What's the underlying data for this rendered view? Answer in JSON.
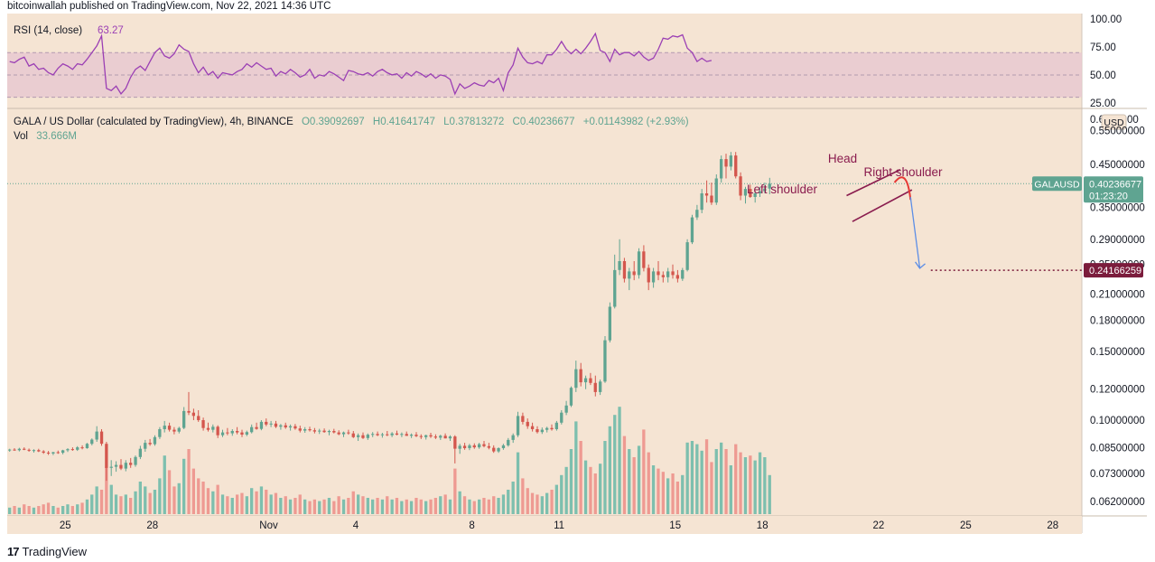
{
  "publisher": "bitcoinwallah published on TradingView.com, Nov 22, 2021 14:36 UTC",
  "footer": {
    "logo_mark": "17",
    "logo_text": "TradingView"
  },
  "colors": {
    "background": "#f5e4d3",
    "panel_bg": "#ffffff",
    "up": "#5fa491",
    "down": "#d4564d",
    "vol_up": "#7dbfae",
    "vol_down": "#ee9a92",
    "rsi_line": "#9b3fb4",
    "rsi_band": "#e6c5d0",
    "pattern": "#8a1c4e",
    "arrow_blue": "#5c8ee6",
    "target_label": "#7b1c3c",
    "price_label": "#5fa491",
    "curve_red": "#e53935"
  },
  "rsi": {
    "legend_name": "RSI (14, close)",
    "legend_value": "63.27",
    "ticks": [
      "100.00",
      "75.00",
      "50.00",
      "25.00"
    ],
    "band": [
      30,
      70
    ]
  },
  "legend": {
    "symbol": "GALA / US Dollar (calculated by TradingView), 4h, BINANCE",
    "o": "O0.39092697",
    "h": "H0.41641747",
    "l": "L0.37813272",
    "c": "C0.40236677",
    "chg": "+0.01143982 (+2.93%)",
    "vol_label": "Vol",
    "vol_value": "33.666M"
  },
  "price_axis": {
    "unit": "USD",
    "top_partial": "0.6",
    "top_partial_suffix": "00",
    "ticks": [
      "0.55000000",
      "0.45000000",
      "0.35000000",
      "0.29000000",
      "0.21000000",
      "0.18000000",
      "0.15000000",
      "0.12000000",
      "0.10000000",
      "0.08500000",
      "0.07300000",
      "0.06200000"
    ],
    "hidden_tick": "0.25000000",
    "current_symbol": "GALAUSD",
    "current_price": "0.40236677",
    "countdown": "01:23:20",
    "target_price": "0.24166259"
  },
  "time_axis": {
    "ticks": [
      "25",
      "28",
      "Nov",
      "4",
      "8",
      "11",
      "15",
      "18",
      "22",
      "25",
      "28"
    ]
  },
  "annotations": {
    "head": "Head",
    "left_shoulder": "Left shoulder",
    "right_shoulder": "Right shoulder"
  },
  "chart_data": {
    "type": "candlestick",
    "title": "GALA / US Dollar (calculated by TradingView), 4h, BINANCE",
    "x_range": [
      "2021-10-23",
      "2021-11-29"
    ],
    "y_scale": "log",
    "ylim": [
      0.056,
      0.62
    ],
    "rsi_range": [
      20,
      105
    ],
    "note": "one entry per 4h bar [open, high, low, close, volume_M]; volume axis not printed so volumes are relative",
    "start": "2021-10-23",
    "candles": [
      [
        0.0838,
        0.0845,
        0.083,
        0.0841,
        4
      ],
      [
        0.0841,
        0.0848,
        0.0835,
        0.0838,
        5
      ],
      [
        0.0838,
        0.085,
        0.0832,
        0.0845,
        4
      ],
      [
        0.0845,
        0.0852,
        0.0838,
        0.084,
        6
      ],
      [
        0.084,
        0.0846,
        0.083,
        0.0835,
        5
      ],
      [
        0.0835,
        0.0842,
        0.0826,
        0.0838,
        4
      ],
      [
        0.0838,
        0.0845,
        0.0829,
        0.0832,
        5
      ],
      [
        0.0832,
        0.0838,
        0.082,
        0.0826,
        6
      ],
      [
        0.0826,
        0.0834,
        0.0815,
        0.0822,
        7
      ],
      [
        0.0822,
        0.083,
        0.0814,
        0.0828,
        5
      ],
      [
        0.0828,
        0.0836,
        0.082,
        0.0825,
        4
      ],
      [
        0.0825,
        0.084,
        0.0818,
        0.0837,
        5
      ],
      [
        0.0837,
        0.0848,
        0.0829,
        0.0843,
        6
      ],
      [
        0.0843,
        0.0852,
        0.0835,
        0.084,
        5
      ],
      [
        0.084,
        0.0858,
        0.0834,
        0.0852,
        6
      ],
      [
        0.0852,
        0.0862,
        0.0842,
        0.0848,
        7
      ],
      [
        0.0848,
        0.0875,
        0.0845,
        0.087,
        9
      ],
      [
        0.087,
        0.0898,
        0.0862,
        0.0892,
        12
      ],
      [
        0.0892,
        0.0965,
        0.088,
        0.0935,
        17
      ],
      [
        0.0935,
        0.0948,
        0.086,
        0.087,
        15
      ],
      [
        0.087,
        0.088,
        0.07,
        0.0755,
        29
      ],
      [
        0.0755,
        0.079,
        0.072,
        0.076,
        18
      ],
      [
        0.076,
        0.0785,
        0.0738,
        0.0768,
        12
      ],
      [
        0.0768,
        0.0795,
        0.0745,
        0.0752,
        11
      ],
      [
        0.0752,
        0.079,
        0.074,
        0.0778,
        12
      ],
      [
        0.0778,
        0.08,
        0.0755,
        0.0768,
        10
      ],
      [
        0.0768,
        0.0812,
        0.076,
        0.0805,
        14
      ],
      [
        0.0805,
        0.086,
        0.0795,
        0.0845,
        20
      ],
      [
        0.0845,
        0.089,
        0.083,
        0.0875,
        17
      ],
      [
        0.0875,
        0.0895,
        0.086,
        0.0868,
        13
      ],
      [
        0.0868,
        0.0915,
        0.086,
        0.0905,
        15
      ],
      [
        0.0905,
        0.096,
        0.0895,
        0.0948,
        22
      ],
      [
        0.0948,
        0.0995,
        0.093,
        0.0968,
        36
      ],
      [
        0.0968,
        0.0985,
        0.0935,
        0.0945,
        27
      ],
      [
        0.0945,
        0.096,
        0.092,
        0.0935,
        17
      ],
      [
        0.0935,
        0.0962,
        0.0925,
        0.0955,
        19
      ],
      [
        0.0955,
        0.108,
        0.0948,
        0.1055,
        34
      ],
      [
        0.1055,
        0.118,
        0.103,
        0.1045,
        40
      ],
      [
        0.1045,
        0.107,
        0.1,
        0.1025,
        28
      ],
      [
        0.1025,
        0.106,
        0.099,
        0.1,
        22
      ],
      [
        0.1,
        0.1015,
        0.094,
        0.0955,
        20
      ],
      [
        0.0955,
        0.0985,
        0.0935,
        0.0945,
        16
      ],
      [
        0.0945,
        0.0975,
        0.093,
        0.0962,
        14
      ],
      [
        0.0962,
        0.097,
        0.09,
        0.0915,
        18
      ],
      [
        0.0915,
        0.0945,
        0.0905,
        0.093,
        12
      ],
      [
        0.093,
        0.0955,
        0.0915,
        0.0925,
        11
      ],
      [
        0.0925,
        0.0948,
        0.0912,
        0.0938,
        10
      ],
      [
        0.0938,
        0.096,
        0.092,
        0.093,
        12
      ],
      [
        0.093,
        0.0945,
        0.0905,
        0.0918,
        13
      ],
      [
        0.0918,
        0.094,
        0.091,
        0.0932,
        11
      ],
      [
        0.0932,
        0.0975,
        0.0925,
        0.096,
        16
      ],
      [
        0.096,
        0.0985,
        0.0945,
        0.095,
        14
      ],
      [
        0.095,
        0.1,
        0.0942,
        0.099,
        17
      ],
      [
        0.099,
        0.101,
        0.0965,
        0.0975,
        15
      ],
      [
        0.0975,
        0.0995,
        0.096,
        0.098,
        12
      ],
      [
        0.098,
        0.0995,
        0.0955,
        0.0962,
        13
      ],
      [
        0.0962,
        0.0978,
        0.0945,
        0.097,
        10
      ],
      [
        0.097,
        0.0985,
        0.095,
        0.0958,
        11
      ],
      [
        0.0958,
        0.0975,
        0.094,
        0.0965,
        9
      ],
      [
        0.0965,
        0.0978,
        0.0945,
        0.0952,
        10
      ],
      [
        0.0952,
        0.0968,
        0.093,
        0.094,
        12
      ],
      [
        0.094,
        0.096,
        0.0928,
        0.0948,
        9
      ],
      [
        0.0948,
        0.0962,
        0.0935,
        0.0942,
        8
      ],
      [
        0.0942,
        0.0955,
        0.0925,
        0.0935,
        9
      ],
      [
        0.0935,
        0.095,
        0.0922,
        0.094,
        8
      ],
      [
        0.094,
        0.0952,
        0.0928,
        0.0932,
        9
      ],
      [
        0.0932,
        0.0945,
        0.0915,
        0.0938,
        10
      ],
      [
        0.0938,
        0.095,
        0.0925,
        0.093,
        8
      ],
      [
        0.093,
        0.0942,
        0.0915,
        0.092,
        11
      ],
      [
        0.092,
        0.0935,
        0.0905,
        0.093,
        9
      ],
      [
        0.093,
        0.0945,
        0.0918,
        0.0925,
        10
      ],
      [
        0.0925,
        0.0938,
        0.09,
        0.0905,
        14
      ],
      [
        0.0905,
        0.0925,
        0.0885,
        0.0915,
        12
      ],
      [
        0.0915,
        0.093,
        0.0895,
        0.09,
        11
      ],
      [
        0.09,
        0.0925,
        0.089,
        0.0918,
        10
      ],
      [
        0.0918,
        0.0932,
        0.0905,
        0.0922,
        9
      ],
      [
        0.0922,
        0.0935,
        0.091,
        0.0915,
        10
      ],
      [
        0.0915,
        0.0928,
        0.0902,
        0.092,
        9
      ],
      [
        0.092,
        0.0938,
        0.091,
        0.0915,
        11
      ],
      [
        0.0915,
        0.0932,
        0.0905,
        0.0925,
        9
      ],
      [
        0.0925,
        0.094,
        0.0915,
        0.0918,
        10
      ],
      [
        0.0918,
        0.093,
        0.0905,
        0.0922,
        8
      ],
      [
        0.0922,
        0.0935,
        0.0912,
        0.0912,
        9
      ],
      [
        0.0912,
        0.0925,
        0.09,
        0.0918,
        8
      ],
      [
        0.0918,
        0.0932,
        0.0905,
        0.091,
        10
      ],
      [
        0.091,
        0.092,
        0.0895,
        0.0905,
        9
      ],
      [
        0.0905,
        0.0918,
        0.0892,
        0.0915,
        8
      ],
      [
        0.0915,
        0.0928,
        0.09,
        0.0908,
        9
      ],
      [
        0.0908,
        0.092,
        0.0895,
        0.0902,
        10
      ],
      [
        0.0902,
        0.0918,
        0.089,
        0.0912,
        11
      ],
      [
        0.0912,
        0.0925,
        0.0898,
        0.0898,
        12
      ],
      [
        0.0898,
        0.0915,
        0.0885,
        0.0908,
        9
      ],
      [
        0.0908,
        0.0915,
        0.0775,
        0.0845,
        28
      ],
      [
        0.0845,
        0.087,
        0.082,
        0.086,
        14
      ],
      [
        0.086,
        0.0875,
        0.084,
        0.0848,
        11
      ],
      [
        0.0848,
        0.087,
        0.0838,
        0.0862,
        9
      ],
      [
        0.0862,
        0.0872,
        0.0845,
        0.0852,
        8
      ],
      [
        0.0852,
        0.0875,
        0.0845,
        0.0868,
        9
      ],
      [
        0.0868,
        0.0885,
        0.0852,
        0.0858,
        10
      ],
      [
        0.0858,
        0.0875,
        0.0842,
        0.085,
        9
      ],
      [
        0.085,
        0.0862,
        0.0825,
        0.0832,
        11
      ],
      [
        0.0832,
        0.0852,
        0.0825,
        0.0848,
        10
      ],
      [
        0.0848,
        0.087,
        0.084,
        0.0862,
        12
      ],
      [
        0.0862,
        0.09,
        0.0855,
        0.089,
        15
      ],
      [
        0.089,
        0.0925,
        0.0875,
        0.0915,
        20
      ],
      [
        0.0915,
        0.105,
        0.0905,
        0.1025,
        38
      ],
      [
        0.1025,
        0.1045,
        0.0975,
        0.099,
        22
      ],
      [
        0.099,
        0.101,
        0.095,
        0.0965,
        16
      ],
      [
        0.0965,
        0.0985,
        0.0935,
        0.0948,
        13
      ],
      [
        0.0948,
        0.0965,
        0.0925,
        0.0932,
        12
      ],
      [
        0.0932,
        0.0958,
        0.0922,
        0.0945,
        11
      ],
      [
        0.0945,
        0.0962,
        0.093,
        0.0955,
        13
      ],
      [
        0.0955,
        0.0975,
        0.094,
        0.0948,
        15
      ],
      [
        0.0948,
        0.0995,
        0.094,
        0.0985,
        18
      ],
      [
        0.0985,
        0.106,
        0.0975,
        0.1045,
        24
      ],
      [
        0.1045,
        0.112,
        0.103,
        0.109,
        29
      ],
      [
        0.109,
        0.122,
        0.108,
        0.121,
        40
      ],
      [
        0.121,
        0.142,
        0.118,
        0.135,
        57
      ],
      [
        0.135,
        0.14,
        0.122,
        0.125,
        45
      ],
      [
        0.125,
        0.13,
        0.12,
        0.128,
        33
      ],
      [
        0.128,
        0.132,
        0.123,
        0.1245,
        29
      ],
      [
        0.1245,
        0.13,
        0.115,
        0.118,
        25
      ],
      [
        0.118,
        0.127,
        0.116,
        0.1255,
        31
      ],
      [
        0.1255,
        0.164,
        0.1245,
        0.16,
        45
      ],
      [
        0.16,
        0.2,
        0.158,
        0.195,
        54
      ],
      [
        0.195,
        0.265,
        0.193,
        0.242,
        61
      ],
      [
        0.242,
        0.29,
        0.235,
        0.255,
        66
      ],
      [
        0.255,
        0.26,
        0.225,
        0.23,
        48
      ],
      [
        0.23,
        0.245,
        0.215,
        0.24,
        40
      ],
      [
        0.24,
        0.255,
        0.228,
        0.235,
        35
      ],
      [
        0.235,
        0.275,
        0.23,
        0.27,
        42
      ],
      [
        0.27,
        0.28,
        0.24,
        0.245,
        52
      ],
      [
        0.245,
        0.25,
        0.215,
        0.225,
        38
      ],
      [
        0.225,
        0.245,
        0.218,
        0.24,
        30
      ],
      [
        0.24,
        0.255,
        0.228,
        0.235,
        28
      ],
      [
        0.235,
        0.24,
        0.225,
        0.232,
        26
      ],
      [
        0.232,
        0.245,
        0.225,
        0.24,
        22
      ],
      [
        0.24,
        0.25,
        0.23,
        0.235,
        25
      ],
      [
        0.235,
        0.242,
        0.225,
        0.23,
        20
      ],
      [
        0.23,
        0.245,
        0.227,
        0.242,
        24
      ],
      [
        0.242,
        0.29,
        0.24,
        0.285,
        44
      ],
      [
        0.285,
        0.335,
        0.282,
        0.33,
        45
      ],
      [
        0.33,
        0.355,
        0.325,
        0.345,
        43
      ],
      [
        0.345,
        0.39,
        0.338,
        0.38,
        39
      ],
      [
        0.38,
        0.41,
        0.36,
        0.375,
        46
      ],
      [
        0.375,
        0.405,
        0.355,
        0.36,
        32
      ],
      [
        0.36,
        0.425,
        0.355,
        0.415,
        40
      ],
      [
        0.415,
        0.475,
        0.405,
        0.465,
        44
      ],
      [
        0.465,
        0.48,
        0.415,
        0.445,
        40
      ],
      [
        0.445,
        0.485,
        0.435,
        0.475,
        30
      ],
      [
        0.475,
        0.485,
        0.415,
        0.42,
        43
      ],
      [
        0.42,
        0.43,
        0.365,
        0.375,
        38
      ],
      [
        0.375,
        0.395,
        0.358,
        0.39,
        35
      ],
      [
        0.39,
        0.4,
        0.37,
        0.372,
        36
      ],
      [
        0.372,
        0.385,
        0.36,
        0.38,
        33
      ],
      [
        0.38,
        0.395,
        0.372,
        0.385,
        38
      ],
      [
        0.385,
        0.405,
        0.38,
        0.391,
        35
      ],
      [
        0.391,
        0.4164,
        0.3781,
        0.4024,
        24
      ]
    ],
    "rsi": [
      62,
      61,
      64,
      66,
      58,
      60,
      55,
      56,
      52,
      50,
      56,
      60,
      58,
      55,
      60,
      59,
      64,
      70,
      76,
      85,
      38,
      36,
      40,
      33,
      38,
      48,
      55,
      58,
      54,
      62,
      70,
      74,
      67,
      65,
      69,
      77,
      73,
      71,
      60,
      52,
      57,
      50,
      53,
      47,
      52,
      51,
      50,
      53,
      55,
      60,
      57,
      61,
      58,
      55,
      56,
      49,
      53,
      51,
      55,
      52,
      48,
      50,
      55,
      47,
      50,
      49,
      53,
      51,
      48,
      45,
      54,
      53,
      51,
      50,
      52,
      49,
      53,
      55,
      52,
      50,
      51,
      47,
      52,
      49,
      53,
      51,
      48,
      51,
      47,
      50,
      49,
      46,
      33,
      42,
      38,
      40,
      43,
      41,
      40,
      45,
      43,
      47,
      36,
      52,
      59,
      74,
      66,
      61,
      60,
      62,
      60,
      68,
      68,
      73,
      80,
      73,
      69,
      73,
      69,
      74,
      80,
      87,
      72,
      70,
      62,
      73,
      68,
      70,
      70,
      67,
      71,
      66,
      63,
      65,
      73,
      83,
      82,
      85,
      84,
      86,
      74,
      70,
      62,
      65,
      62,
      63
    ]
  }
}
